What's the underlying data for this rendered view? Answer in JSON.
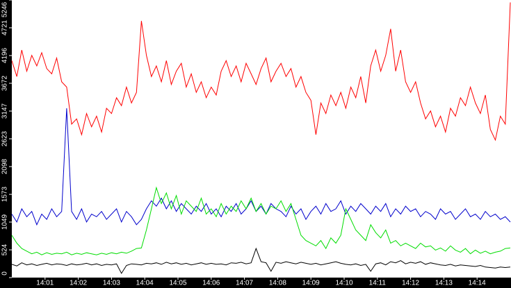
{
  "chart_data": {
    "type": "line",
    "x": [
      0,
      0.15,
      0.3,
      0.45,
      0.6,
      0.75,
      0.9,
      1.05,
      1.2,
      1.35,
      1.5,
      1.65,
      1.8,
      1.95,
      2.1,
      2.25,
      2.4,
      2.55,
      2.7,
      2.85,
      3,
      3.15,
      3.3,
      3.45,
      3.6,
      3.75,
      3.9,
      4.05,
      4.2,
      4.35,
      4.5,
      4.65,
      4.8,
      4.95,
      5.1,
      5.25,
      5.4,
      5.55,
      5.7,
      5.85,
      6,
      6.15,
      6.3,
      6.45,
      6.6,
      6.75,
      6.9,
      7.05,
      7.2,
      7.35,
      7.5,
      7.65,
      7.8,
      7.95,
      8.1,
      8.25,
      8.4,
      8.55,
      8.7,
      8.85,
      9,
      9.15,
      9.3,
      9.45,
      9.6,
      9.75,
      9.9,
      10.05,
      10.2,
      10.35,
      10.5,
      10.65,
      10.8,
      10.95,
      11.1,
      11.25,
      11.4,
      11.55,
      11.7,
      11.85,
      12,
      12.15,
      12.3,
      12.45,
      12.6,
      12.75,
      12.9,
      13.05,
      13.2,
      13.35,
      13.5,
      13.65,
      13.8,
      13.95,
      14.1,
      14.25,
      14.4,
      14.55,
      14.7,
      14.85,
      15
    ],
    "xlim": [
      0,
      15
    ],
    "xticks": [
      {
        "value": 1,
        "label": "14:01"
      },
      {
        "value": 2,
        "label": "14:02"
      },
      {
        "value": 3,
        "label": "14:03"
      },
      {
        "value": 4,
        "label": "14:04"
      },
      {
        "value": 5,
        "label": "14:05"
      },
      {
        "value": 6,
        "label": "14:06"
      },
      {
        "value": 7,
        "label": "14:07"
      },
      {
        "value": 8,
        "label": "14:08"
      },
      {
        "value": 9,
        "label": "14:09"
      },
      {
        "value": 10,
        "label": "14:10"
      },
      {
        "value": 11,
        "label": "14:11"
      },
      {
        "value": 12,
        "label": "14:12"
      },
      {
        "value": 13,
        "label": "14:13"
      },
      {
        "value": 14,
        "label": "14:14"
      }
    ],
    "ylim": [
      0,
      5246
    ],
    "yticks": [
      0,
      524,
      1049,
      1573,
      2098,
      2623,
      3147,
      3672,
      4196,
      4721,
      5246
    ],
    "series": [
      {
        "color": "#ff0000",
        "values": [
          4100,
          3800,
          4300,
          3900,
          4200,
          4000,
          4250,
          3950,
          3850,
          4150,
          3700,
          3600,
          2900,
          3000,
          2700,
          3100,
          2850,
          3050,
          2750,
          3200,
          3100,
          3400,
          3250,
          3600,
          3300,
          3500,
          4850,
          4200,
          3800,
          4000,
          3700,
          4100,
          3650,
          3900,
          4050,
          3600,
          3850,
          3500,
          3700,
          3400,
          3600,
          3450,
          3900,
          4100,
          3800,
          4000,
          3700,
          4050,
          3850,
          3650,
          3950,
          4150,
          3700,
          3900,
          4050,
          3800,
          3950,
          3600,
          3800,
          3500,
          3350,
          2700,
          3300,
          3100,
          3450,
          3250,
          3500,
          3200,
          3600,
          3400,
          3800,
          3300,
          4000,
          4300,
          3900,
          4200,
          4700,
          3900,
          4300,
          3700,
          3500,
          3700,
          3300,
          3000,
          3150,
          2850,
          3050,
          2750,
          3200,
          3050,
          3400,
          3250,
          3600,
          3300,
          3100,
          3450,
          2800,
          2600,
          3050,
          2900,
          5200
        ]
      },
      {
        "color": "#0000cc",
        "values": [
          1200,
          1050,
          1300,
          1150,
          1250,
          1000,
          1200,
          1100,
          1300,
          1150,
          1250,
          3200,
          1250,
          1100,
          1300,
          1050,
          1200,
          1150,
          1250,
          1100,
          1200,
          1300,
          1050,
          1250,
          1150,
          1000,
          1100,
          1300,
          1450,
          1350,
          1500,
          1300,
          1450,
          1250,
          1400,
          1300,
          1200,
          1350,
          1250,
          1400,
          1200,
          1300,
          1150,
          1350,
          1250,
          1400,
          1200,
          1300,
          1450,
          1250,
          1350,
          1200,
          1400,
          1300,
          1250,
          1150,
          1350,
          1200,
          1300,
          1100,
          1250,
          1350,
          1200,
          1400,
          1250,
          1300,
          1450,
          1200,
          1350,
          1250,
          1400,
          1300,
          1200,
          1350,
          1250,
          1400,
          1150,
          1300,
          1200,
          1350,
          1250,
          1300,
          1150,
          1250,
          1200,
          1100,
          1300,
          1200,
          1250,
          1100,
          1200,
          1300,
          1150,
          1200,
          1100,
          1250,
          1150,
          1200,
          1100,
          1150,
          1050
        ]
      },
      {
        "color": "#00dd00",
        "values": [
          800,
          650,
          550,
          500,
          450,
          480,
          430,
          470,
          440,
          460,
          450,
          480,
          430,
          460,
          440,
          470,
          450,
          430,
          460,
          440,
          470,
          450,
          480,
          460,
          500,
          550,
          560,
          900,
          1300,
          1700,
          1400,
          1600,
          1300,
          1550,
          1200,
          1450,
          1350,
          1250,
          1500,
          1200,
          1300,
          1150,
          1400,
          1200,
          1350,
          1250,
          1450,
          1300,
          1500,
          1250,
          1400,
          1200,
          1350,
          1300,
          1450,
          1250,
          1400,
          1100,
          800,
          700,
          650,
          600,
          700,
          550,
          750,
          650,
          800,
          1300,
          1100,
          900,
          800,
          700,
          1000,
          850,
          750,
          900,
          650,
          700,
          600,
          650,
          600,
          550,
          650,
          580,
          600,
          520,
          560,
          500,
          600,
          520,
          480,
          550,
          450,
          520,
          460,
          500,
          450,
          480,
          500,
          550,
          560
        ]
      },
      {
        "color": "#000000",
        "values": [
          250,
          220,
          280,
          240,
          260,
          230,
          250,
          270,
          240,
          260,
          250,
          230,
          260,
          240,
          250,
          270,
          240,
          260,
          230,
          250,
          240,
          260,
          80,
          230,
          260,
          250,
          240,
          270,
          260,
          280,
          250,
          290,
          260,
          280,
          250,
          270,
          240,
          260,
          280,
          250,
          270,
          250,
          260,
          240,
          280,
          270,
          290,
          260,
          280,
          550,
          300,
          280,
          120,
          290,
          270,
          300,
          280,
          260,
          290,
          270,
          250,
          270,
          240,
          260,
          280,
          300,
          270,
          250,
          240,
          260,
          230,
          250,
          120,
          260,
          280,
          240,
          300,
          280,
          320,
          260,
          290,
          270,
          300,
          250,
          280,
          260,
          240,
          230,
          250,
          220,
          240,
          230,
          220,
          210,
          230,
          200,
          190,
          180,
          200,
          190,
          200
        ]
      }
    ]
  }
}
